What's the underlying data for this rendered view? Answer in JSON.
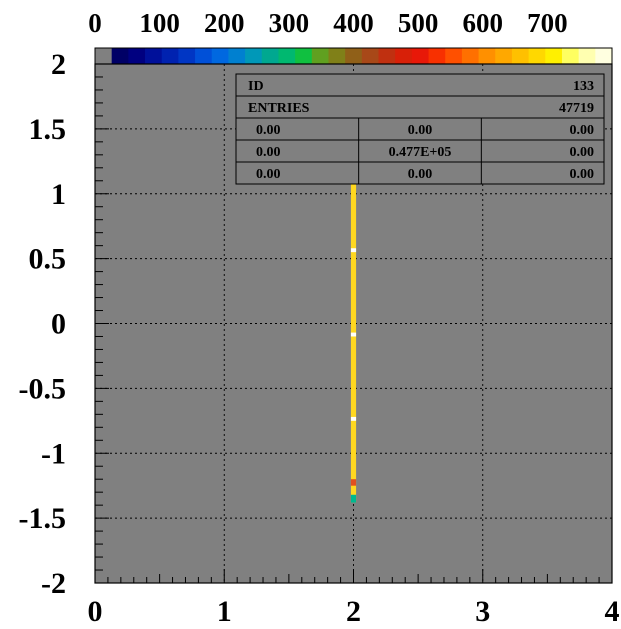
{
  "chart_data": {
    "type": "heatmap",
    "title": "",
    "xlabel": "",
    "ylabel": "",
    "xlim": [
      0,
      4
    ],
    "ylim": [
      -2,
      2
    ],
    "x_ticks": [
      "0",
      "1",
      "2",
      "3",
      "4"
    ],
    "y_ticks": [
      "2",
      "1.5",
      "1",
      "0.5",
      "0",
      "-0.5",
      "-1",
      "-1.5",
      "-2"
    ],
    "grid": true,
    "plot_background": "#808080",
    "colorbar": {
      "ticks": [
        "0",
        "100",
        "200",
        "300",
        "400",
        "500",
        "600",
        "700"
      ],
      "range": [
        0,
        800
      ],
      "colors": [
        "#808080",
        "#000066",
        "#000080",
        "#00109a",
        "#0022b0",
        "#0036c4",
        "#0050d8",
        "#0068e0",
        "#0080d0",
        "#0098b8",
        "#00a890",
        "#00b870",
        "#10c040",
        "#60a020",
        "#808018",
        "#906018",
        "#a84818",
        "#c03010",
        "#d82008",
        "#e81808",
        "#f83000",
        "#ff5000",
        "#ff7000",
        "#ff9000",
        "#ffa800",
        "#ffc000",
        "#ffd800",
        "#fff000",
        "#ffff60",
        "#ffffb0",
        "#ffffe0"
      ]
    },
    "cells": [
      {
        "x0": 1.98,
        "x1": 2.02,
        "y0": -1.38,
        "y1": 1.38,
        "value": 620,
        "color": "#ffd820"
      },
      {
        "x0": 1.98,
        "x1": 2.02,
        "y0": 1.32,
        "y1": 1.38,
        "value": 180,
        "color": "#00b890"
      },
      {
        "x0": 1.98,
        "x1": 2.02,
        "y0": 1.2,
        "y1": 1.25,
        "value": 480,
        "color": "#e05020"
      },
      {
        "x0": 1.98,
        "x1": 2.02,
        "y0": 0.55,
        "y1": 0.58,
        "value": 800,
        "color": "#ffffff"
      },
      {
        "x0": 1.98,
        "x1": 2.02,
        "y0": -0.1,
        "y1": -0.07,
        "value": 800,
        "color": "#ffffff"
      },
      {
        "x0": 1.98,
        "x1": 2.02,
        "y0": -0.75,
        "y1": -0.72,
        "value": 800,
        "color": "#ffffff"
      },
      {
        "x0": 1.98,
        "x1": 2.02,
        "y0": -1.25,
        "y1": -1.2,
        "value": 480,
        "color": "#e05020"
      },
      {
        "x0": 1.98,
        "x1": 2.02,
        "y0": -1.38,
        "y1": -1.32,
        "value": 180,
        "color": "#00b890"
      }
    ],
    "stats_box": {
      "id_label": "ID",
      "id_value": "133",
      "entries_label": "ENTRIES",
      "entries_value": "47719",
      "grid": [
        [
          "0.00",
          "0.00",
          "0.00"
        ],
        [
          "0.00",
          "0.477E+05",
          "0.00"
        ],
        [
          "0.00",
          "0.00",
          "0.00"
        ]
      ]
    }
  }
}
